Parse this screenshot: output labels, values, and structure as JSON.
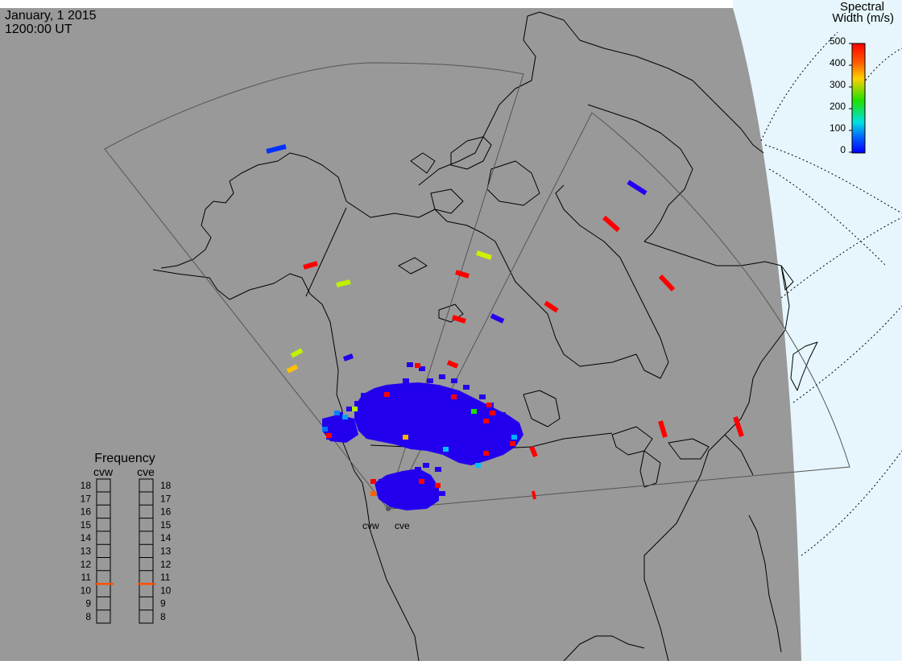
{
  "header": {
    "date": "January, 1 2015",
    "time": "1200:00 UT"
  },
  "colorbar": {
    "title_line1": "Spectral",
    "title_line2": "Width (m/s)",
    "ticks": [
      "500",
      "400",
      "300",
      "200",
      "100",
      "0"
    ],
    "colors": [
      "#ff0000",
      "#ff8000",
      "#ffd000",
      "#20e000",
      "#00e0e0",
      "#0040ff",
      "#0000ff"
    ]
  },
  "frequency_panel": {
    "title": "Frequency",
    "radars": [
      "cvw",
      "cve"
    ],
    "ticks": [
      "18",
      "17",
      "16",
      "15",
      "14",
      "13",
      "12",
      "11",
      "10",
      "9",
      "8"
    ],
    "marker_value_mhz": 10.5,
    "marker_color": "#ff5000"
  },
  "radars": {
    "site_labels": [
      "cvw",
      "cve"
    ]
  },
  "colors": {
    "land_shade": "#999999",
    "ocean_night": "#ffffff",
    "day_side": "#e6f6fc",
    "scatter_main": "#2200ee"
  }
}
